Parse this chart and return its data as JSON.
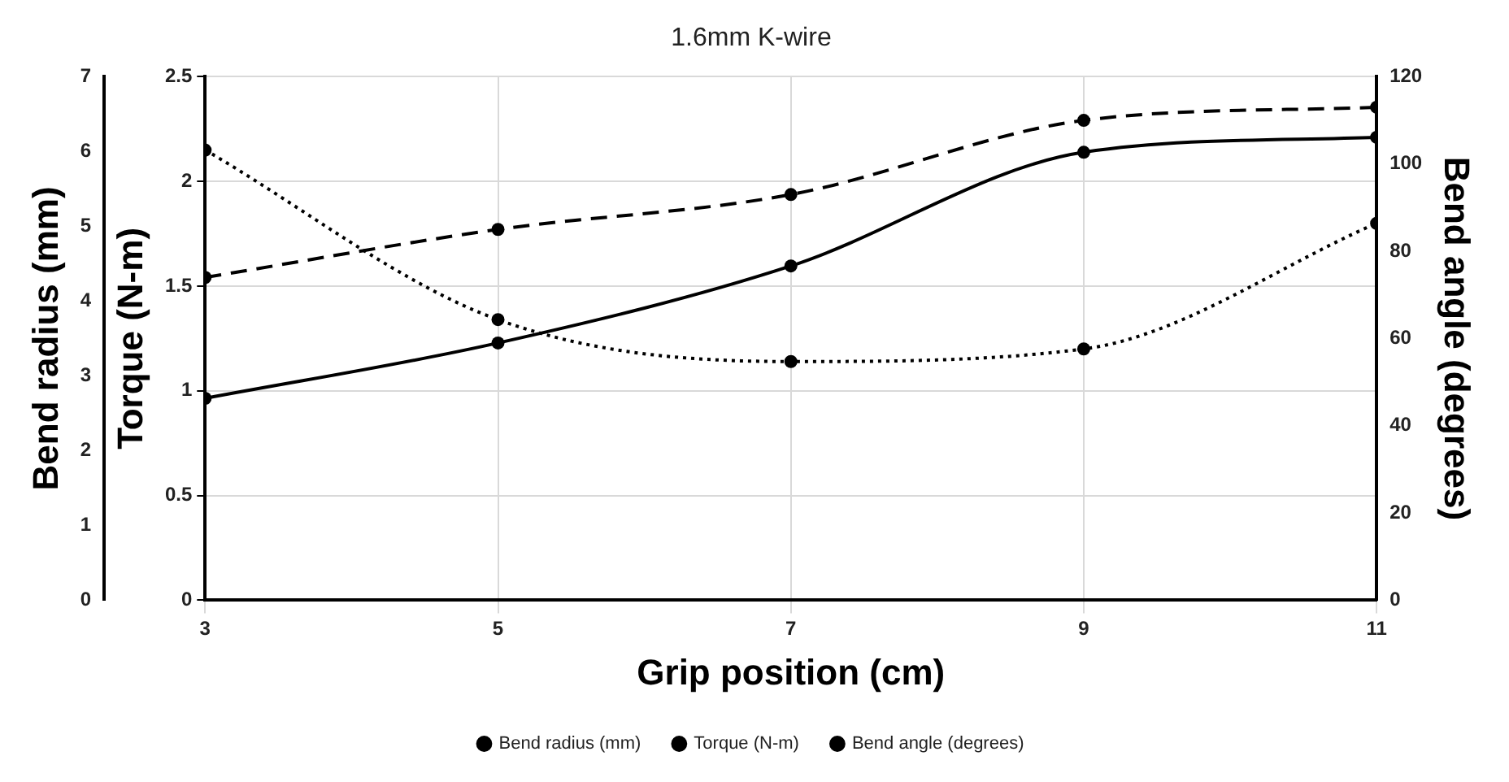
{
  "chart_data": {
    "type": "line",
    "title": "1.6mm K-wire",
    "xlabel": "Grip position (cm)",
    "ylabel": "Torque (N-m)",
    "y2label": "Bend angle (degrees)",
    "y3label": "Bend radius (mm)",
    "x": [
      3,
      5,
      7,
      9,
      11
    ],
    "xlim": [
      3,
      11
    ],
    "xticks": [
      3,
      5,
      7,
      9,
      11
    ],
    "ylim": [
      0,
      2.5
    ],
    "yticks": [
      0,
      0.5,
      1,
      1.5,
      2,
      2.5
    ],
    "y2lim": [
      0,
      120
    ],
    "y2ticks": [
      0,
      20,
      40,
      60,
      80,
      100,
      120
    ],
    "y3lim": [
      0,
      7
    ],
    "y3ticks": [
      0,
      1,
      2,
      3,
      4,
      5,
      6,
      7
    ],
    "series": [
      {
        "name": "Bend radius (mm)",
        "color": "#000000",
        "values": [
          2.7,
          3.44,
          4.47,
          5.99,
          6.19
        ],
        "axis": "y3",
        "line_style": "solid"
      },
      {
        "name": "Torque (N-m)",
        "color": "#000000",
        "values": [
          2.15,
          1.34,
          1.14,
          1.2,
          1.8
        ],
        "line_style": "dotted"
      },
      {
        "name": "Bend angle (degrees)",
        "color": "#000000",
        "values": [
          74,
          85,
          93,
          110,
          113
        ],
        "axis": "y2",
        "line_style": "dashed"
      }
    ],
    "marker": "circle",
    "grid": true,
    "legend": "bottom"
  }
}
